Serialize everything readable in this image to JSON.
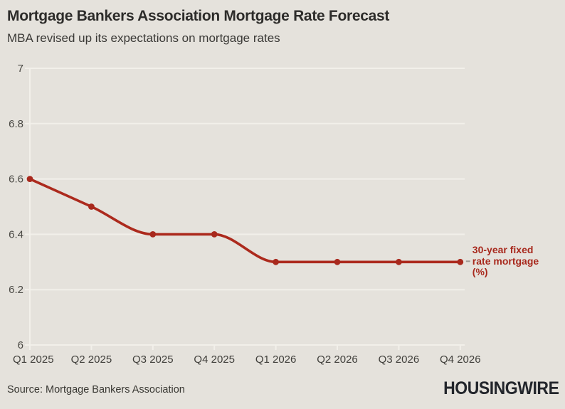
{
  "header": {
    "title": "Mortgage Bankers Association Mortgage Rate Forecast",
    "subtitle": "MBA revised up its expectations on mortgage rates"
  },
  "footer": {
    "source": "Source: Mortgage Bankers Association",
    "brand": "HOUSINGWIRE"
  },
  "annotation": {
    "label": "30-year fixed rate mortgage (%)",
    "lines": [
      "30-year fixed",
      "rate mortgage",
      "(%)"
    ],
    "color": "#a8291d"
  },
  "colors": {
    "background": "#e5e2dc",
    "grid": "#f2f0ea",
    "line": "#ac2a1d",
    "point": "#a8291d",
    "ytick_label": "#4a4944",
    "xtick_label": "#403f3b",
    "leader_dash": "#a09c95"
  },
  "chart_data": {
    "type": "line",
    "title": "Mortgage Bankers Association Mortgage Rate Forecast",
    "subtitle": "MBA revised up its expectations on mortgage rates",
    "categories": [
      "Q1 2025",
      "Q2 2025",
      "Q3 2025",
      "Q4 2025",
      "Q1 2026",
      "Q2 2026",
      "Q3 2026",
      "Q4 2026"
    ],
    "series": [
      {
        "name": "30-year fixed rate mortgage (%)",
        "values": [
          6.6,
          6.5,
          6.4,
          6.4,
          6.3,
          6.3,
          6.3,
          6.3
        ]
      }
    ],
    "xlabel": "",
    "ylabel": "",
    "ylim": [
      6,
      7
    ],
    "yticks": [
      6,
      6.2,
      6.4,
      6.6,
      6.8,
      7
    ],
    "grid": true,
    "legend_position": "right-of-last-point",
    "source": "Mortgage Bankers Association"
  }
}
